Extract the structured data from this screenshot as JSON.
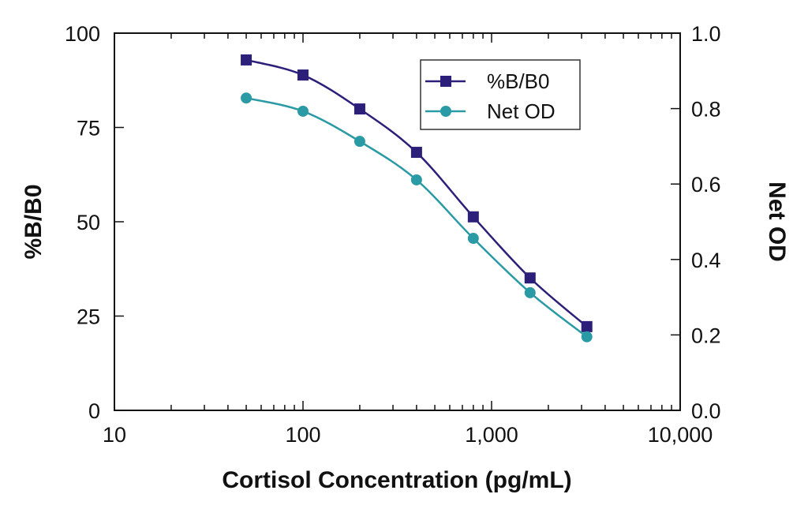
{
  "chart_data": {
    "type": "line",
    "xlabel": "Cortisol Concentration (pg/mL)",
    "ylabel": "%B/B0",
    "y2label": "Net OD",
    "xscale": "log",
    "xlim": [
      10,
      10000
    ],
    "ylim": [
      0,
      100
    ],
    "y2lim": [
      0.0,
      1.0
    ],
    "x_ticks": [
      "10",
      "100",
      "1,000",
      "10,000"
    ],
    "y_ticks": [
      "0",
      "25",
      "50",
      "75",
      "100"
    ],
    "y2_ticks": [
      "0.0",
      "0.2",
      "0.4",
      "0.6",
      "0.8",
      "1.0"
    ],
    "grid": false,
    "legend": "top-right",
    "x": [
      50,
      100,
      200,
      400,
      800,
      1600,
      3200
    ],
    "series": [
      {
        "name": "%B/B0",
        "axis": "left",
        "marker": "square",
        "color": "#2b1f7a",
        "values": [
          92.9,
          88.9,
          79.9,
          68.4,
          51.3,
          35.1,
          22.2
        ]
      },
      {
        "name": "Net OD",
        "axis": "right",
        "marker": "circle",
        "color": "#2a9aa5",
        "values": [
          0.828,
          0.793,
          0.713,
          0.611,
          0.456,
          0.312,
          0.195
        ]
      }
    ]
  }
}
